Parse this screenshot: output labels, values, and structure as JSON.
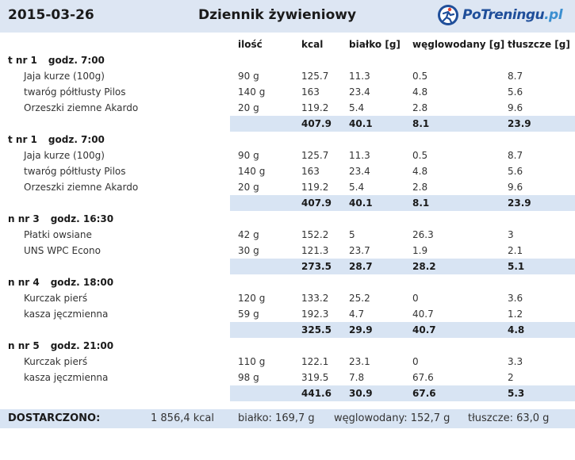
{
  "header": {
    "date": "2015-03-26",
    "title": "Dziennik żywieniowy",
    "logo_main": "PoTreningu",
    "logo_domain": ".pl"
  },
  "columns": {
    "qty": "ilość",
    "kcal": "kcal",
    "protein": "białko [g]",
    "carbs": "węglowodany [g]",
    "fat": "tłuszcze [g]"
  },
  "meals": [
    {
      "label": "t nr 1",
      "time": "godz. 7:00",
      "items": [
        {
          "name": "Jaja kurze (100g)",
          "qty": "90 g",
          "kcal": "125.7",
          "protein": "11.3",
          "carbs": "0.5",
          "fat": "8.7"
        },
        {
          "name": "twaróg półtłusty Pilos",
          "qty": "140 g",
          "kcal": "163",
          "protein": "23.4",
          "carbs": "4.8",
          "fat": "5.6"
        },
        {
          "name": "Orzeszki ziemne Akardo",
          "qty": "20 g",
          "kcal": "119.2",
          "protein": "5.4",
          "carbs": "2.8",
          "fat": "9.6"
        }
      ],
      "total": {
        "kcal": "407.9",
        "protein": "40.1",
        "carbs": "8.1",
        "fat": "23.9"
      }
    },
    {
      "label": "t nr 1",
      "time": "godz. 7:00",
      "items": [
        {
          "name": "Jaja kurze (100g)",
          "qty": "90 g",
          "kcal": "125.7",
          "protein": "11.3",
          "carbs": "0.5",
          "fat": "8.7"
        },
        {
          "name": "twaróg półtłusty Pilos",
          "qty": "140 g",
          "kcal": "163",
          "protein": "23.4",
          "carbs": "4.8",
          "fat": "5.6"
        },
        {
          "name": "Orzeszki ziemne Akardo",
          "qty": "20 g",
          "kcal": "119.2",
          "protein": "5.4",
          "carbs": "2.8",
          "fat": "9.6"
        }
      ],
      "total": {
        "kcal": "407.9",
        "protein": "40.1",
        "carbs": "8.1",
        "fat": "23.9"
      }
    },
    {
      "label": "n nr 3",
      "time": "godz. 16:30",
      "items": [
        {
          "name": "Płatki owsiane",
          "qty": "42 g",
          "kcal": "152.2",
          "protein": "5",
          "carbs": "26.3",
          "fat": "3"
        },
        {
          "name": "UNS WPC Econo",
          "qty": "30 g",
          "kcal": "121.3",
          "protein": "23.7",
          "carbs": "1.9",
          "fat": "2.1"
        }
      ],
      "total": {
        "kcal": "273.5",
        "protein": "28.7",
        "carbs": "28.2",
        "fat": "5.1"
      }
    },
    {
      "label": "n nr 4",
      "time": "godz. 18:00",
      "items": [
        {
          "name": "Kurczak pierś",
          "qty": "120 g",
          "kcal": "133.2",
          "protein": "25.2",
          "carbs": "0",
          "fat": "3.6"
        },
        {
          "name": "kasza jęczmienna",
          "qty": "59 g",
          "kcal": "192.3",
          "protein": "4.7",
          "carbs": "40.7",
          "fat": "1.2"
        }
      ],
      "total": {
        "kcal": "325.5",
        "protein": "29.9",
        "carbs": "40.7",
        "fat": "4.8"
      }
    },
    {
      "label": "n nr 5",
      "time": "godz. 21:00",
      "items": [
        {
          "name": "Kurczak pierś",
          "qty": "110 g",
          "kcal": "122.1",
          "protein": "23.1",
          "carbs": "0",
          "fat": "3.3"
        },
        {
          "name": "kasza jęczmienna",
          "qty": "98 g",
          "kcal": "319.5",
          "protein": "7.8",
          "carbs": "67.6",
          "fat": "2"
        }
      ],
      "total": {
        "kcal": "441.6",
        "protein": "30.9",
        "carbs": "67.6",
        "fat": "5.3"
      }
    }
  ],
  "summary": {
    "label": "DOSTARCZONO:",
    "kcal": "1 856,4 kcal",
    "protein": "białko: 169,7 g",
    "carbs": "węglowodany: 152,7 g",
    "fat": "tłuszcze: 63,0 g"
  },
  "colors": {
    "header_bg": "#dde6f3",
    "total_bg": "#d8e4f3",
    "logo_blue": "#1f4e9a",
    "logo_light_blue": "#3b8fd0"
  }
}
